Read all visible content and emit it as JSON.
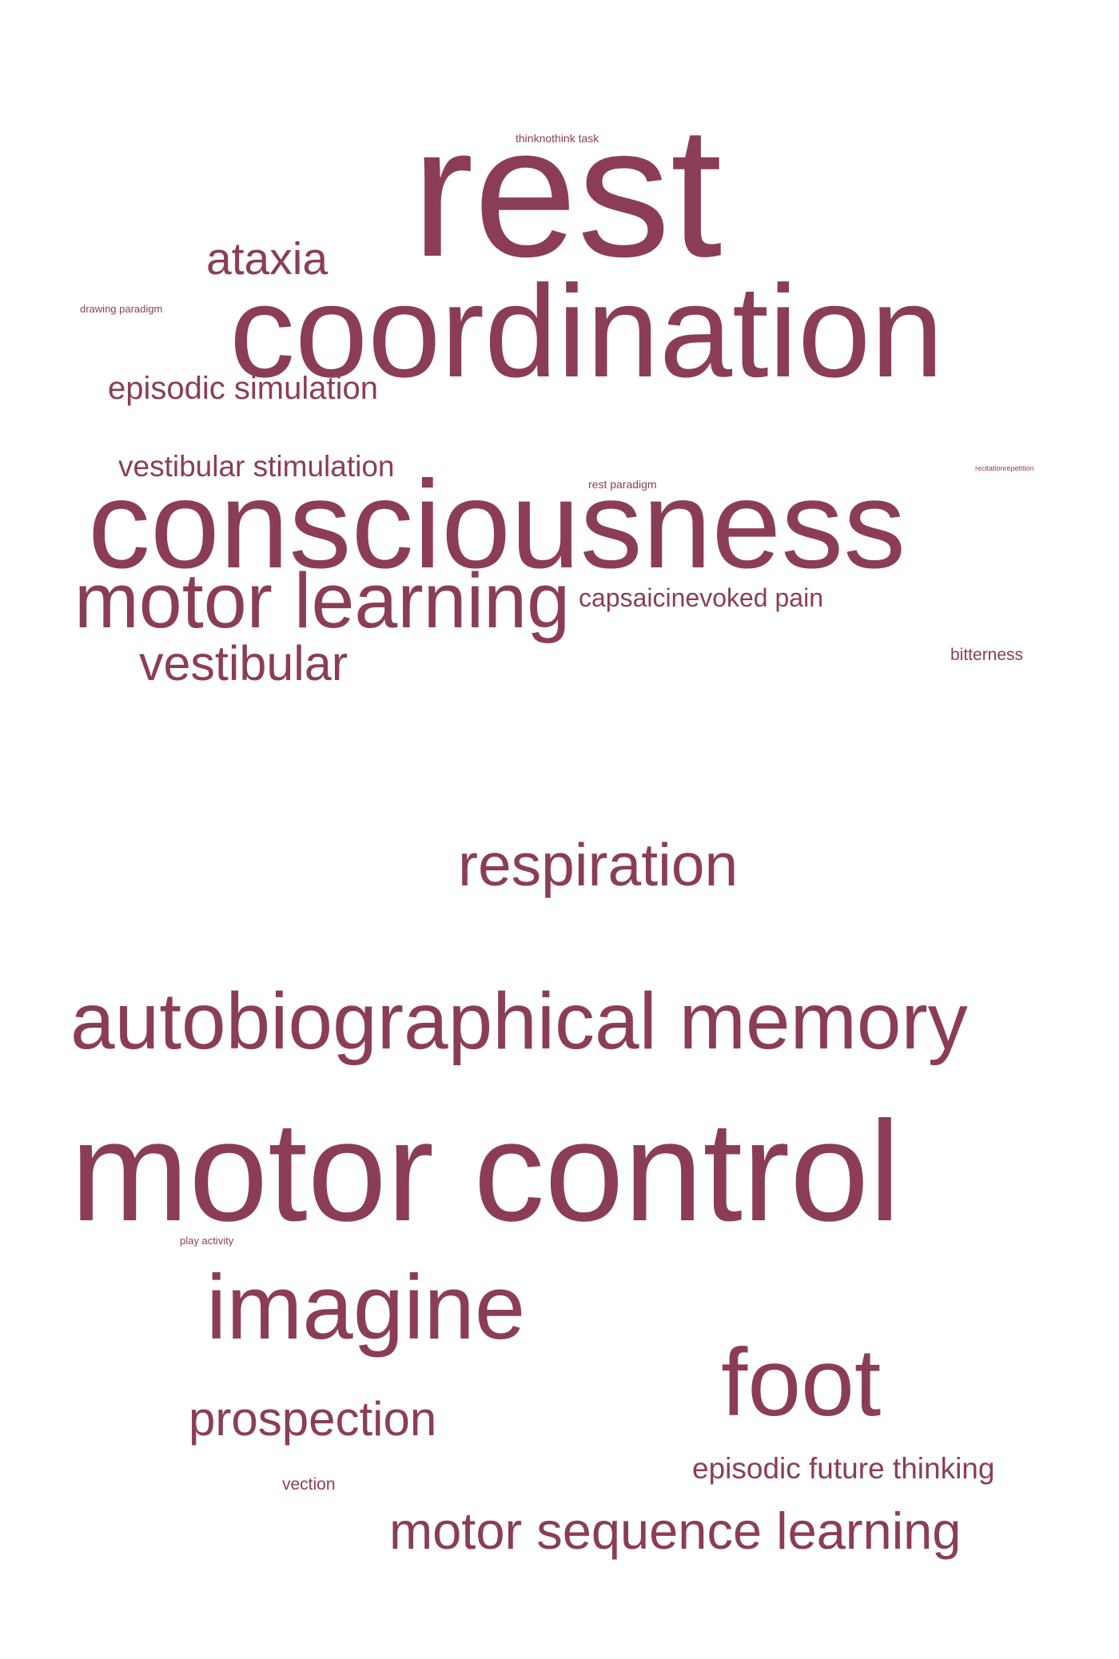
{
  "style": {
    "word_color": "#8b3d58",
    "background": "#ffffff"
  },
  "words": [
    {
      "text": "thinknothink task"
    },
    {
      "text": "rest"
    },
    {
      "text": "ataxia"
    },
    {
      "text": "drawing paradigm"
    },
    {
      "text": "coordination"
    },
    {
      "text": "episodic simulation"
    },
    {
      "text": "vestibular stimulation"
    },
    {
      "text": "rest paradigm"
    },
    {
      "text": "recitationrepetition"
    },
    {
      "text": "consciousness"
    },
    {
      "text": "motor learning"
    },
    {
      "text": "capsaicinevoked pain"
    },
    {
      "text": "vestibular"
    },
    {
      "text": "bitterness"
    },
    {
      "text": "respiration"
    },
    {
      "text": "autobiographical memory"
    },
    {
      "text": "motor control"
    },
    {
      "text": "play activity"
    },
    {
      "text": "imagine"
    },
    {
      "text": "foot"
    },
    {
      "text": "prospection"
    },
    {
      "text": "episodic future thinking"
    },
    {
      "text": "vection"
    },
    {
      "text": "motor sequence learning"
    }
  ]
}
